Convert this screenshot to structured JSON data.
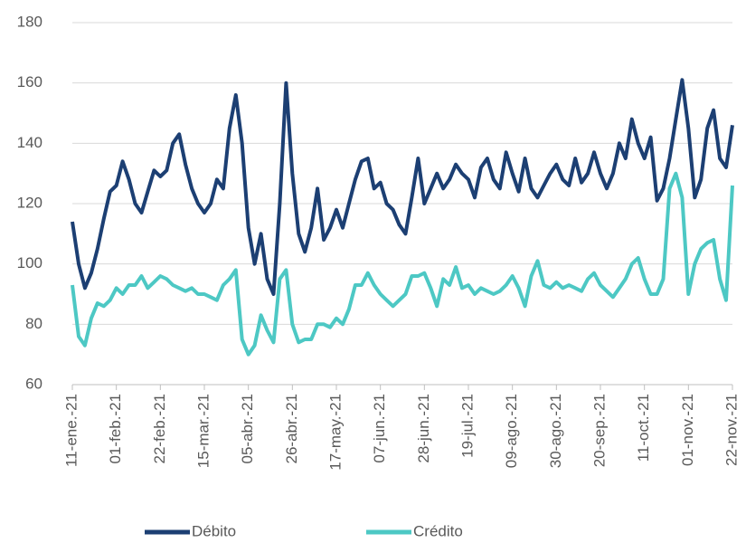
{
  "chart_data": {
    "type": "line",
    "categories": [
      "11-ene.-21",
      null,
      null,
      null,
      null,
      null,
      null,
      "01-feb.-21",
      null,
      null,
      null,
      null,
      null,
      null,
      "22-feb.-21",
      null,
      null,
      null,
      null,
      null,
      null,
      "15-mar.-21",
      null,
      null,
      null,
      null,
      null,
      null,
      "05-abr.-21",
      null,
      null,
      null,
      null,
      null,
      null,
      "26-abr.-21",
      null,
      null,
      null,
      null,
      null,
      null,
      "17-may.-21",
      null,
      null,
      null,
      null,
      null,
      null,
      "07-jun.-21",
      null,
      null,
      null,
      null,
      null,
      null,
      "28-jun.-21",
      null,
      null,
      null,
      null,
      null,
      null,
      "19-jul.-21",
      null,
      null,
      null,
      null,
      null,
      null,
      "09-ago.-21",
      null,
      null,
      null,
      null,
      null,
      null,
      "30-ago.-21",
      null,
      null,
      null,
      null,
      null,
      null,
      "20-sep.-21",
      null,
      null,
      null,
      null,
      null,
      null,
      "11-oct.-21",
      null,
      null,
      null,
      null,
      null,
      null,
      "01-nov.-21",
      null,
      null,
      null,
      null,
      null,
      null,
      "22-nov.-21"
    ],
    "series": [
      {
        "name": "Débito",
        "color": "#1c3f73",
        "values": [
          114,
          100,
          92,
          97,
          105,
          115,
          124,
          126,
          134,
          128,
          120,
          117,
          124,
          131,
          129,
          131,
          140,
          143,
          133,
          125,
          120,
          117,
          120,
          128,
          125,
          145,
          156,
          140,
          112,
          100,
          110,
          95,
          90,
          120,
          160,
          130,
          110,
          104,
          112,
          125,
          108,
          112,
          118,
          112,
          120,
          128,
          134,
          135,
          125,
          127,
          120,
          118,
          113,
          110,
          122,
          135,
          120,
          125,
          130,
          125,
          128,
          133,
          130,
          128,
          122,
          132,
          135,
          128,
          125,
          137,
          130,
          124,
          135,
          125,
          122,
          126,
          130,
          133,
          128,
          126,
          135,
          127,
          130,
          137,
          130,
          125,
          130,
          140,
          135,
          148,
          140,
          135,
          142,
          121,
          125,
          135,
          148,
          161,
          145,
          122,
          128,
          145,
          151,
          135,
          132,
          146
        ]
      },
      {
        "name": "Crédito",
        "color": "#4dc8c4",
        "values": [
          93,
          76,
          73,
          82,
          87,
          86,
          88,
          92,
          90,
          93,
          93,
          96,
          92,
          94,
          96,
          95,
          93,
          92,
          91,
          92,
          90,
          90,
          89,
          88,
          93,
          95,
          98,
          75,
          70,
          73,
          83,
          78,
          74,
          95,
          98,
          80,
          74,
          75,
          75,
          80,
          80,
          79,
          82,
          80,
          85,
          93,
          93,
          97,
          93,
          90,
          88,
          86,
          88,
          90,
          96,
          96,
          97,
          92,
          86,
          95,
          93,
          99,
          92,
          93,
          90,
          92,
          91,
          90,
          91,
          93,
          96,
          92,
          86,
          96,
          101,
          93,
          92,
          94,
          92,
          93,
          92,
          91,
          95,
          97,
          93,
          91,
          89,
          92,
          95,
          100,
          102,
          95,
          90,
          90,
          95,
          125,
          130,
          122,
          90,
          100,
          105,
          107,
          108,
          95,
          88,
          126
        ]
      }
    ],
    "ylim": [
      60,
      180
    ],
    "yticks": [
      60,
      80,
      100,
      120,
      140,
      160,
      180
    ],
    "grid": true
  }
}
